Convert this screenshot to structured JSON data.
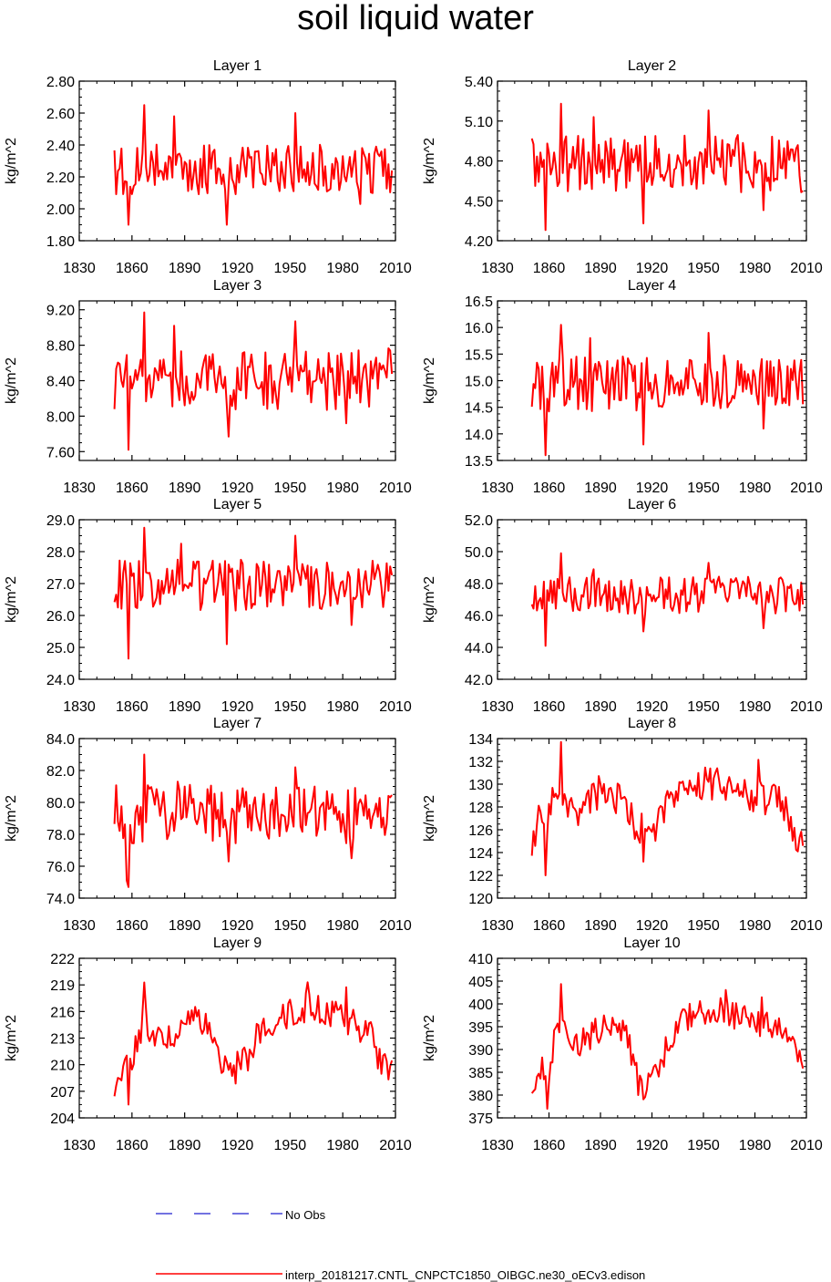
{
  "page": {
    "title": "soil liquid water",
    "legend": {
      "obs_label": "No Obs",
      "model_label": "interp_20181217.CNTL_CNPCTC1850_OIBGC.ne30_oECv3.edison"
    },
    "colors": {
      "model": "#ff0000",
      "obs": "#1f1fcf",
      "axis": "#000000"
    }
  },
  "chart_data": [
    {
      "type": "line",
      "title": "Layer 1",
      "xlabel": "",
      "ylabel": "kg/m^2",
      "xlim": [
        1830,
        2010
      ],
      "ylim": [
        1.8,
        2.8
      ],
      "x_ticks": [
        "1830",
        "1860",
        "1890",
        "1920",
        "1950",
        "1980",
        "2010"
      ],
      "y_ticks": [
        "1.80",
        "2.00",
        "2.20",
        "2.40",
        "2.60",
        "2.80"
      ],
      "seed": 11,
      "spikes": [
        [
          1858,
          -0.35
        ],
        [
          1867,
          0.4
        ],
        [
          1884,
          0.33
        ],
        [
          1914,
          -0.35
        ],
        [
          1953,
          0.35
        ],
        [
          1990,
          -0.22
        ]
      ],
      "series": [
        {
          "name": "interp_20181217.CNTL_CNPCTC1850_OIBGC.ne30_oECv3.edison",
          "x_start": 1850,
          "x_end": 2008,
          "mean": 2.25,
          "amp": 0.12
        }
      ]
    },
    {
      "type": "line",
      "title": "Layer 2",
      "xlabel": "",
      "ylabel": "kg/m^2",
      "xlim": [
        1830,
        2010
      ],
      "ylim": [
        4.2,
        5.4
      ],
      "x_ticks": [
        "1830",
        "1860",
        "1890",
        "1920",
        "1950",
        "1980",
        "2010"
      ],
      "y_ticks": [
        "4.20",
        "4.50",
        "4.80",
        "5.10",
        "5.40"
      ],
      "seed": 12,
      "spikes": [
        [
          1858,
          -0.5
        ],
        [
          1867,
          0.45
        ],
        [
          1886,
          0.35
        ],
        [
          1915,
          -0.45
        ],
        [
          1953,
          0.4
        ],
        [
          1985,
          -0.35
        ]
      ],
      "series": [
        {
          "name": "interp_20181217.CNTL_CNPCTC1850_OIBGC.ne30_oECv3.edison",
          "x_start": 1850,
          "x_end": 2008,
          "mean": 4.78,
          "amp": 0.16
        }
      ]
    },
    {
      "type": "line",
      "title": "Layer 3",
      "xlabel": "",
      "ylabel": "kg/m^2",
      "xlim": [
        1830,
        2010
      ],
      "ylim": [
        7.5,
        9.3
      ],
      "x_ticks": [
        "1830",
        "1860",
        "1890",
        "1920",
        "1950",
        "1980",
        "2010"
      ],
      "y_ticks": [
        "7.60",
        "8.00",
        "8.40",
        "8.80",
        "9.20"
      ],
      "seed": 13,
      "spikes": [
        [
          1858,
          -0.8
        ],
        [
          1867,
          0.75
        ],
        [
          1884,
          0.6
        ],
        [
          1915,
          -0.65
        ],
        [
          1953,
          0.65
        ],
        [
          1982,
          -0.5
        ]
      ],
      "series": [
        {
          "name": "interp_20181217.CNTL_CNPCTC1850_OIBGC.ne30_oECv3.edison",
          "x_start": 1850,
          "x_end": 2008,
          "mean": 8.42,
          "amp": 0.26
        }
      ]
    },
    {
      "type": "line",
      "title": "Layer 4",
      "xlabel": "",
      "ylabel": "kg/m^2",
      "xlim": [
        1830,
        2010
      ],
      "ylim": [
        13.5,
        16.5
      ],
      "x_ticks": [
        "1830",
        "1860",
        "1890",
        "1920",
        "1950",
        "1980",
        "2010"
      ],
      "y_ticks": [
        "13.5",
        "14.0",
        "14.5",
        "15.0",
        "15.5",
        "16.0",
        "16.5"
      ],
      "seed": 14,
      "spikes": [
        [
          1858,
          -1.35
        ],
        [
          1867,
          1.1
        ],
        [
          1884,
          0.85
        ],
        [
          1915,
          -1.15
        ],
        [
          1953,
          0.95
        ],
        [
          1985,
          -0.85
        ]
      ],
      "series": [
        {
          "name": "interp_20181217.CNTL_CNPCTC1850_OIBGC.ne30_oECv3.edison",
          "x_start": 1850,
          "x_end": 2008,
          "mean": 14.95,
          "amp": 0.4
        }
      ]
    },
    {
      "type": "line",
      "title": "Layer 5",
      "xlabel": "",
      "ylabel": "kg/m^2",
      "xlim": [
        1830,
        2010
      ],
      "ylim": [
        24.0,
        29.0
      ],
      "x_ticks": [
        "1830",
        "1860",
        "1890",
        "1920",
        "1950",
        "1980",
        "2010"
      ],
      "y_ticks": [
        "24.0",
        "25.0",
        "26.0",
        "27.0",
        "28.0",
        "29.0"
      ],
      "seed": 15,
      "spikes": [
        [
          1858,
          -2.3
        ],
        [
          1867,
          1.8
        ],
        [
          1888,
          1.3
        ],
        [
          1914,
          -1.85
        ],
        [
          1953,
          1.55
        ],
        [
          1985,
          -1.25
        ]
      ],
      "series": [
        {
          "name": "interp_20181217.CNTL_CNPCTC1850_OIBGC.ne30_oECv3.edison",
          "x_start": 1850,
          "x_end": 2008,
          "mean": 26.95,
          "amp": 0.6
        }
      ]
    },
    {
      "type": "line",
      "title": "Layer 6",
      "xlabel": "",
      "ylabel": "kg/m^2",
      "xlim": [
        1830,
        2010
      ],
      "ylim": [
        42.0,
        52.0
      ],
      "x_ticks": [
        "1830",
        "1860",
        "1890",
        "1920",
        "1950",
        "1980",
        "2010"
      ],
      "y_ticks": [
        "42.0",
        "44.0",
        "46.0",
        "48.0",
        "50.0",
        "52.0"
      ],
      "seed": 16,
      "spikes": [
        [
          1858,
          -3.2
        ],
        [
          1867,
          2.6
        ],
        [
          1886,
          1.6
        ],
        [
          1915,
          -2.3
        ],
        [
          1953,
          2.0
        ],
        [
          1985,
          -2.1
        ]
      ],
      "series": [
        {
          "name": "interp_20181217.CNTL_CNPCTC1850_OIBGC.ne30_oECv3.edison",
          "x_start": 1850,
          "x_end": 2008,
          "mean": 47.3,
          "amp": 0.9
        }
      ]
    },
    {
      "type": "line",
      "title": "Layer 7",
      "xlabel": "",
      "ylabel": "kg/m^2",
      "xlim": [
        1830,
        2010
      ],
      "ylim": [
        74.0,
        84.0
      ],
      "x_ticks": [
        "1830",
        "1860",
        "1890",
        "1920",
        "1950",
        "1980",
        "2010"
      ],
      "y_ticks": [
        "74.0",
        "76.0",
        "78.0",
        "80.0",
        "82.0",
        "84.0"
      ],
      "seed": 17,
      "spikes": [
        [
          1857,
          -4.2
        ],
        [
          1858,
          -4.6
        ],
        [
          1867,
          3.7
        ],
        [
          1886,
          2.0
        ],
        [
          1915,
          -3.0
        ],
        [
          1953,
          2.9
        ],
        [
          1985,
          -2.8
        ]
      ],
      "series": [
        {
          "name": "interp_20181217.CNTL_CNPCTC1850_OIBGC.ne30_oECv3.edison",
          "x_start": 1850,
          "x_end": 2008,
          "mean": 79.3,
          "amp": 1.4
        }
      ]
    },
    {
      "type": "line",
      "title": "Layer 8",
      "xlabel": "",
      "ylabel": "kg/m^2",
      "xlim": [
        1830,
        2010
      ],
      "ylim": [
        120,
        134
      ],
      "x_ticks": [
        "1830",
        "1860",
        "1890",
        "1920",
        "1950",
        "1980",
        "2010"
      ],
      "y_ticks": [
        "120",
        "122",
        "124",
        "126",
        "128",
        "130",
        "132",
        "134"
      ],
      "seed": 18,
      "spikes": [
        [
          1858,
          -4.5
        ],
        [
          1867,
          4.2
        ],
        [
          1915,
          -2.8
        ],
        [
          1982,
          3.2
        ]
      ],
      "series": [
        {
          "name": "interp_20181217.CNTL_CNPCTC1850_OIBGC.ne30_oECv3.edison",
          "x_start": 1850,
          "x_end": 2008,
          "amp": 1.1,
          "trend": [
            [
              1850,
              124.0
            ],
            [
              1853,
              127.0
            ],
            [
              1858,
              126.5
            ],
            [
              1862,
              129.0
            ],
            [
              1867,
              129.5
            ],
            [
              1875,
              127.0
            ],
            [
              1890,
              129.5
            ],
            [
              1905,
              128.5
            ],
            [
              1910,
              126.0
            ],
            [
              1920,
              126.0
            ],
            [
              1930,
              128.5
            ],
            [
              1940,
              130.0
            ],
            [
              1960,
              130.0
            ],
            [
              1980,
              129.0
            ],
            [
              1995,
              128.5
            ],
            [
              2002,
              126.0
            ],
            [
              2008,
              125.0
            ]
          ]
        }
      ]
    },
    {
      "type": "line",
      "title": "Layer 9",
      "xlabel": "",
      "ylabel": "kg/m^2",
      "xlim": [
        1830,
        2010
      ],
      "ylim": [
        204,
        222
      ],
      "x_ticks": [
        "1830",
        "1860",
        "1890",
        "1920",
        "1950",
        "1980",
        "2010"
      ],
      "y_ticks": [
        "204",
        "207",
        "210",
        "213",
        "216",
        "219",
        "222"
      ],
      "seed": 19,
      "spikes": [
        [
          1858,
          -4.5
        ],
        [
          1867,
          4.5
        ],
        [
          1960,
          3.0
        ],
        [
          1982,
          3.5
        ]
      ],
      "series": [
        {
          "name": "interp_20181217.CNTL_CNPCTC1850_OIBGC.ne30_oECv3.edison",
          "x_start": 1850,
          "x_end": 2008,
          "amp": 1.3,
          "trend": [
            [
              1850,
              206.5
            ],
            [
              1855,
              210.0
            ],
            [
              1860,
              210.0
            ],
            [
              1866,
              215.0
            ],
            [
              1875,
              213.0
            ],
            [
              1880,
              212.5
            ],
            [
              1890,
              215.0
            ],
            [
              1905,
              214.5
            ],
            [
              1910,
              211.0
            ],
            [
              1915,
              209.0
            ],
            [
              1925,
              210.5
            ],
            [
              1935,
              214.5
            ],
            [
              1955,
              216.5
            ],
            [
              1980,
              215.5
            ],
            [
              1995,
              213.5
            ],
            [
              2003,
              210.0
            ],
            [
              2008,
              209.0
            ]
          ]
        }
      ]
    },
    {
      "type": "line",
      "title": "Layer 10",
      "xlabel": "",
      "ylabel": "kg/m^2",
      "xlim": [
        1830,
        2010
      ],
      "ylim": [
        375,
        410
      ],
      "x_ticks": [
        "1830",
        "1860",
        "1890",
        "1920",
        "1950",
        "1980",
        "2010"
      ],
      "y_ticks": [
        "375",
        "380",
        "385",
        "390",
        "395",
        "400",
        "405",
        "410"
      ],
      "seed": 20,
      "spikes": [
        [
          1859,
          -9.0
        ],
        [
          1867,
          9.0
        ],
        [
          1912,
          -5.0
        ],
        [
          1963,
          5.0
        ],
        [
          1984,
          6.0
        ]
      ],
      "series": [
        {
          "name": "interp_20181217.CNTL_CNPCTC1850_OIBGC.ne30_oECv3.edison",
          "x_start": 1850,
          "x_end": 2008,
          "amp": 2.4,
          "trend": [
            [
              1850,
              380.0
            ],
            [
              1855,
              386.0
            ],
            [
              1860,
              386.0
            ],
            [
              1866,
              396.0
            ],
            [
              1875,
              390.0
            ],
            [
              1890,
              395.0
            ],
            [
              1905,
              394.0
            ],
            [
              1910,
              387.0
            ],
            [
              1915,
              382.0
            ],
            [
              1925,
              387.0
            ],
            [
              1935,
              396.0
            ],
            [
              1955,
              399.0
            ],
            [
              1980,
              396.0
            ],
            [
              1995,
              394.0
            ],
            [
              2003,
              389.0
            ],
            [
              2008,
              386.0
            ]
          ]
        }
      ]
    }
  ]
}
